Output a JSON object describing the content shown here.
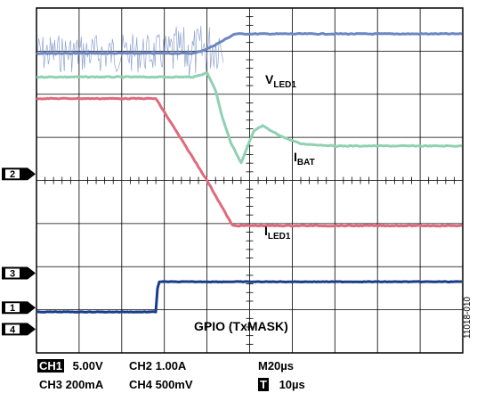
{
  "chart_data": {
    "type": "line",
    "x_divisions": 10,
    "y_divisions": 8,
    "grid": true,
    "time_per_div_us": 20,
    "series": [
      {
        "name": "VLED1",
        "label_main": "V",
        "label_sub": "LED1",
        "color": "#6b86c1",
        "noisy_until_div": 4.4,
        "points": [
          [
            0,
            1.05
          ],
          [
            3.7,
            1.05
          ],
          [
            4.0,
            0.95
          ],
          [
            4.3,
            0.8
          ],
          [
            4.65,
            0.6
          ],
          [
            10,
            0.6
          ]
        ]
      },
      {
        "name": "IBAT",
        "label_main": "I",
        "label_sub": "BAT",
        "color": "#8fd1b2",
        "points": [
          [
            0,
            1.6
          ],
          [
            3.7,
            1.6
          ],
          [
            4.0,
            1.5
          ],
          [
            4.2,
            1.9
          ],
          [
            4.35,
            2.5
          ],
          [
            4.55,
            3.1
          ],
          [
            4.8,
            3.6
          ],
          [
            4.95,
            3.22
          ],
          [
            5.1,
            2.85
          ],
          [
            5.3,
            2.73
          ],
          [
            5.5,
            2.85
          ],
          [
            5.8,
            3.0
          ],
          [
            6.2,
            3.15
          ],
          [
            7.0,
            3.2
          ],
          [
            10,
            3.2
          ]
        ]
      },
      {
        "name": "ILED1",
        "label_main": "I",
        "label_sub": "LED1",
        "color": "#e06a7b",
        "points": [
          [
            0,
            2.1
          ],
          [
            2.8,
            2.1
          ],
          [
            4.0,
            4.0
          ],
          [
            4.6,
            5.05
          ],
          [
            10,
            5.05
          ]
        ]
      },
      {
        "name": "GPIO (TxMASK)",
        "label_main": "GPIO (TxMASK)",
        "label_sub": "",
        "color": "#1a3d8a",
        "points": [
          [
            0,
            7.05
          ],
          [
            2.8,
            7.05
          ],
          [
            2.85,
            6.35
          ],
          [
            10,
            6.35
          ]
        ]
      }
    ],
    "channel_markers": [
      {
        "id": "ch2",
        "label": "2",
        "div": 3.85
      },
      {
        "id": "ch3",
        "label": "3",
        "div": 6.15
      },
      {
        "id": "ch1",
        "label": "1",
        "div": 6.95
      },
      {
        "id": "ch4",
        "label": "4",
        "div": 7.45
      }
    ]
  },
  "status": {
    "ch1_tag": "CH1",
    "ch1_scale": "5.00V",
    "ch2_text": "CH2  1.00A",
    "timebase": "M20µs",
    "ch3_text": "CH3  200mA",
    "ch4_text": "CH4  500mV",
    "trigger_tag": "T",
    "trigger_value": "10µs"
  },
  "figure_id": "11018-010"
}
